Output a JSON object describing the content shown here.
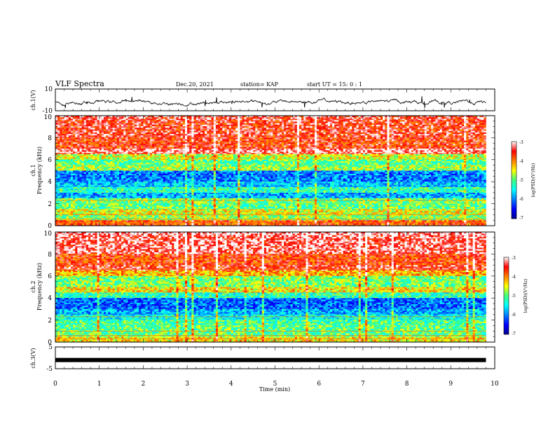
{
  "header": {
    "title": "VLF Spectra",
    "date": "Dec.20, 2021",
    "station": "station= KAP",
    "start": "start UT =  15: 0 : 1"
  },
  "chart_data": [
    {
      "id": "ch1-voltage",
      "type": "line",
      "ylabel": "ch.1(V)",
      "ylim": [
        -10,
        10
      ],
      "yticks": [
        "10",
        "-10"
      ],
      "xlim": [
        0,
        10
      ],
      "series": [
        {
          "values_description_free": true
        }
      ],
      "data_end_min": 9.8
    },
    {
      "id": "ch1-spectrogram",
      "type": "heatmap",
      "ylabel": "ch.1\nFrequency (kHz)",
      "ylabel_top": "ch.1",
      "ylabel_bottom": "Frequency (kHz)",
      "ylim": [
        0,
        10
      ],
      "yticks": [
        "0",
        "2",
        "4",
        "6",
        "8",
        "10"
      ],
      "xlim": [
        0,
        10
      ],
      "data_end_min": 9.8,
      "colorbar": {
        "label": "log(PSD)(V²/Hz)",
        "range": [
          -7,
          -3
        ],
        "ticks": [
          "-3",
          "-4",
          "-5",
          "-6",
          "-7"
        ]
      },
      "band_levels": [
        {
          "f": [
            9.6,
            10.0
          ],
          "level": -3.4
        },
        {
          "f": [
            8.0,
            9.6
          ],
          "level": -3.5
        },
        {
          "f": [
            7.0,
            8.0
          ],
          "level": -3.6
        },
        {
          "f": [
            6.5,
            7.0
          ],
          "level": -3.2
        },
        {
          "f": [
            6.0,
            6.5
          ],
          "level": -4.6
        },
        {
          "f": [
            5.5,
            6.0
          ],
          "level": -5.0
        },
        {
          "f": [
            5.0,
            5.5
          ],
          "level": -4.8
        },
        {
          "f": [
            4.0,
            5.0
          ],
          "level": -6.0
        },
        {
          "f": [
            3.5,
            4.0
          ],
          "level": -5.7
        },
        {
          "f": [
            3.0,
            3.5
          ],
          "level": -5.2
        },
        {
          "f": [
            2.5,
            3.0
          ],
          "level": -5.8
        },
        {
          "f": [
            2.0,
            2.5
          ],
          "level": -4.9
        },
        {
          "f": [
            1.5,
            2.0
          ],
          "level": -5.0
        },
        {
          "f": [
            1.0,
            1.5
          ],
          "level": -4.5
        },
        {
          "f": [
            0.5,
            1.0
          ],
          "level": -4.8
        },
        {
          "f": [
            0.0,
            0.5
          ],
          "level": -3.8
        }
      ]
    },
    {
      "id": "ch2-spectrogram",
      "type": "heatmap",
      "ylabel_top": "ch.2",
      "ylabel_bottom": "Frequency (kHz)",
      "ylim": [
        0,
        10
      ],
      "yticks": [
        "0",
        "2",
        "4",
        "6",
        "8",
        "10"
      ],
      "xlim": [
        0,
        10
      ],
      "data_end_min": 9.8,
      "colorbar": {
        "label": "log(PSD)(V²/Hz)",
        "range": [
          -7,
          -3
        ],
        "ticks": [
          "-3",
          "-4",
          "-5",
          "-6",
          "-7"
        ]
      },
      "band_levels": [
        {
          "f": [
            9.7,
            10.0
          ],
          "level": -3.1
        },
        {
          "f": [
            8.0,
            9.7
          ],
          "level": -3.3
        },
        {
          "f": [
            7.0,
            8.0
          ],
          "level": -3.7
        },
        {
          "f": [
            6.5,
            7.0
          ],
          "level": -3.5
        },
        {
          "f": [
            6.0,
            6.5
          ],
          "level": -4.2
        },
        {
          "f": [
            5.0,
            6.0
          ],
          "level": -4.9
        },
        {
          "f": [
            4.5,
            5.0
          ],
          "level": -4.4
        },
        {
          "f": [
            4.0,
            4.5
          ],
          "level": -5.2
        },
        {
          "f": [
            3.0,
            4.0
          ],
          "level": -6.1
        },
        {
          "f": [
            2.5,
            3.0
          ],
          "level": -5.8
        },
        {
          "f": [
            2.0,
            2.5
          ],
          "level": -5.4
        },
        {
          "f": [
            1.5,
            2.0
          ],
          "level": -5.1
        },
        {
          "f": [
            0.5,
            1.5
          ],
          "level": -5.0
        },
        {
          "f": [
            0.0,
            0.5
          ],
          "level": -4.4
        }
      ]
    },
    {
      "id": "ch3-voltage",
      "type": "line",
      "ylabel": "ch.3(V)",
      "ylim": [
        -5,
        5
      ],
      "yticks": [
        "5",
        "-5"
      ],
      "xlim": [
        0,
        10
      ],
      "constant_value": -1.0,
      "data_end_min": 9.8,
      "xlabel": "Time (min)",
      "xticks": [
        "0",
        "1",
        "2",
        "3",
        "4",
        "5",
        "6",
        "7",
        "8",
        "9",
        "10"
      ]
    }
  ]
}
